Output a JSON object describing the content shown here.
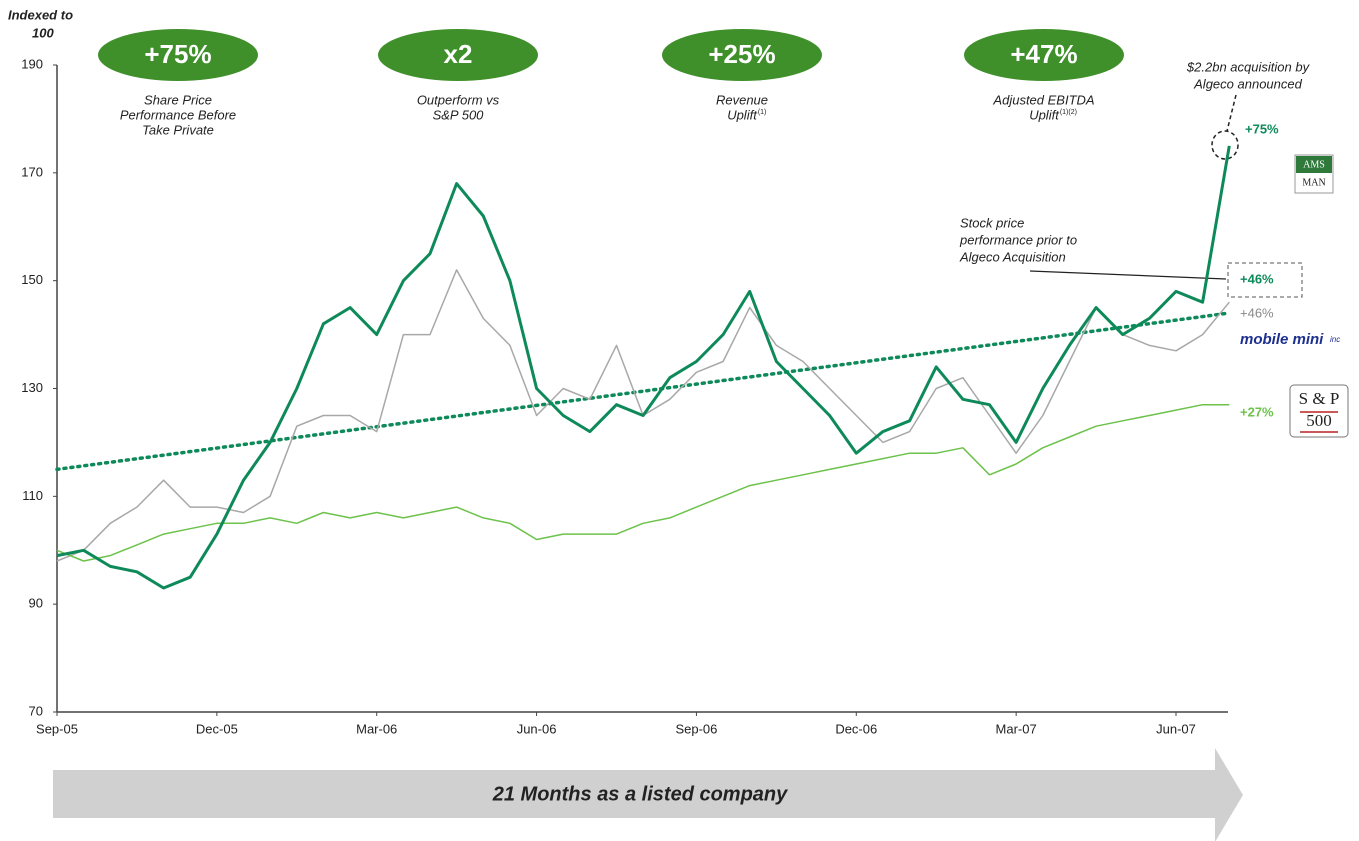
{
  "chart_data": {
    "type": "line",
    "y_axis_label": [
      "Indexed to",
      "100"
    ],
    "categories": [
      "Sep-05",
      null,
      null,
      null,
      null,
      null,
      "Dec-05",
      null,
      null,
      null,
      null,
      null,
      "Mar-06",
      null,
      null,
      null,
      null,
      null,
      "Jun-06",
      null,
      null,
      null,
      null,
      null,
      "Sep-06",
      null,
      null,
      null,
      null,
      null,
      "Dec-06",
      null,
      null,
      null,
      null,
      null,
      "Mar-07",
      null,
      null,
      null,
      null,
      null,
      "Jun-07",
      null,
      null
    ],
    "series": [
      {
        "color": "#a8a8a8",
        "width": 1.5,
        "values": [
          98,
          100,
          105,
          108,
          113,
          108,
          108,
          107,
          110,
          123,
          125,
          125,
          122,
          140,
          140,
          152,
          143,
          138,
          125,
          130,
          128,
          138,
          125,
          128,
          133,
          135,
          145,
          138,
          135,
          130,
          125,
          120,
          122,
          130,
          132,
          125,
          118,
          125,
          135,
          145,
          140,
          138,
          137,
          140,
          146
        ]
      },
      {
        "color": "#6cc24a",
        "width": 1.5,
        "values": [
          100,
          98,
          99,
          101,
          103,
          104,
          105,
          105,
          106,
          105,
          107,
          106,
          107,
          106,
          107,
          108,
          106,
          105,
          102,
          103,
          103,
          103,
          105,
          106,
          108,
          110,
          112,
          113,
          114,
          115,
          116,
          117,
          118,
          118,
          119,
          114,
          116,
          119,
          121,
          123,
          124,
          125,
          126,
          127,
          127
        ]
      },
      {
        "color": "#0e8a5a",
        "width": 3,
        "values": [
          99,
          100,
          97,
          96,
          93,
          95,
          103,
          113,
          120,
          130,
          142,
          145,
          140,
          150,
          155,
          168,
          162,
          150,
          130,
          125,
          122,
          127,
          125,
          132,
          135,
          140,
          148,
          135,
          130,
          125,
          118,
          122,
          124,
          134,
          128,
          127,
          120,
          130,
          138,
          145,
          140,
          143,
          148,
          146,
          175
        ]
      }
    ],
    "trendline": {
      "start": 115,
      "end": 144,
      "color": "#0e8a5a"
    },
    "ylim": [
      70,
      190
    ],
    "yticks": [
      70,
      90,
      110,
      130,
      150,
      170,
      190
    ],
    "highlights": [
      {
        "label": "+75%",
        "text": [
          "Share Price",
          "Performance Before",
          "Take Private"
        ]
      },
      {
        "label": "x2",
        "text": [
          "Outperform vs",
          "S&P 500"
        ]
      },
      {
        "label": "+25%",
        "text": [
          "Revenue",
          "Uplift"
        ],
        "note": "(1)"
      },
      {
        "label": "+47%",
        "text": [
          "Adjusted EBITDA",
          "Uplift"
        ],
        "note": "(1)(2)"
      }
    ],
    "annotations": {
      "acquisition": [
        "$2.2bn acquisition by",
        "Algeco announced"
      ],
      "prior": [
        "Stock price",
        "performance prior to",
        "Algeco Acquisition"
      ],
      "end_labels": [
        "+75%",
        "+46%",
        "+46%",
        "+27%"
      ]
    },
    "logos": {
      "ws": [
        "AMS",
        "MAN"
      ],
      "mobile_mini": "mobile mini",
      "mobile_mini_suffix": "inc",
      "sp": [
        "S & P",
        "500"
      ]
    },
    "banner": "21 Months as a listed company"
  }
}
